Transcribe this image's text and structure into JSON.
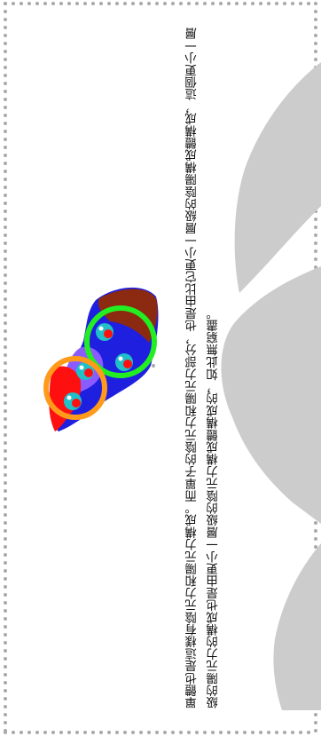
{
  "document": {
    "paragraph": "單體也是這樣有陰元力和陽元力構成。而單子的陰元力和陽元力部分，也是由比它更小一層級的陰陽構成體構成，這個更小一層級的陽元力的構成也是由更小一層級的陰元力構成體構成的，如此無窮盡。"
  },
  "colors": {
    "border_dots": "#a9a9a9",
    "watermark": "#cccccc",
    "shape_blue": "#1f1fe0",
    "shape_brown": "#8b2a10",
    "shape_red": "#ff1010",
    "shape_purple": "#8a5cff",
    "ring_green": "#22ee22",
    "ring_orange": "#ff9a1a",
    "node_teal": "#20c0c8"
  },
  "icons": {
    "illustration": "yin-yang-cluster-diagram",
    "watermark": "large-gray-glyph-watermark"
  }
}
